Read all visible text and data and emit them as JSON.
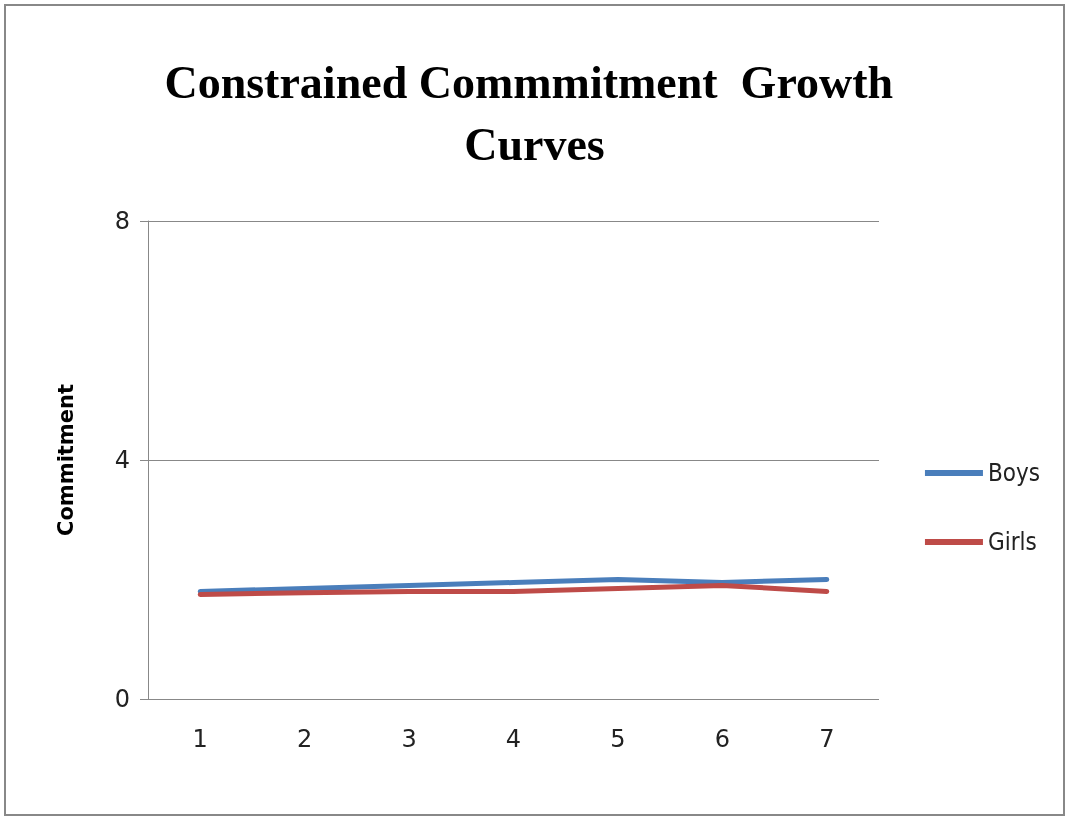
{
  "chart_data": {
    "type": "line",
    "title": "Constrained Commmitment  Growth Curves",
    "ylabel": "Commitment",
    "categories": [
      "1",
      "2",
      "3",
      "4",
      "5",
      "6",
      "7"
    ],
    "series": [
      {
        "name": "Boys",
        "color": "#4a7ebb",
        "values": [
          1.8,
          1.85,
          1.9,
          1.95,
          2.0,
          1.95,
          2.0
        ]
      },
      {
        "name": "Girls",
        "color": "#be4b48",
        "values": [
          1.75,
          1.78,
          1.8,
          1.8,
          1.85,
          1.9,
          1.8
        ]
      }
    ],
    "ylim": [
      0,
      8
    ],
    "yticks": [
      0,
      4,
      8
    ],
    "grid": "y",
    "legend": "right",
    "marker": "none",
    "line_style": "solid"
  }
}
